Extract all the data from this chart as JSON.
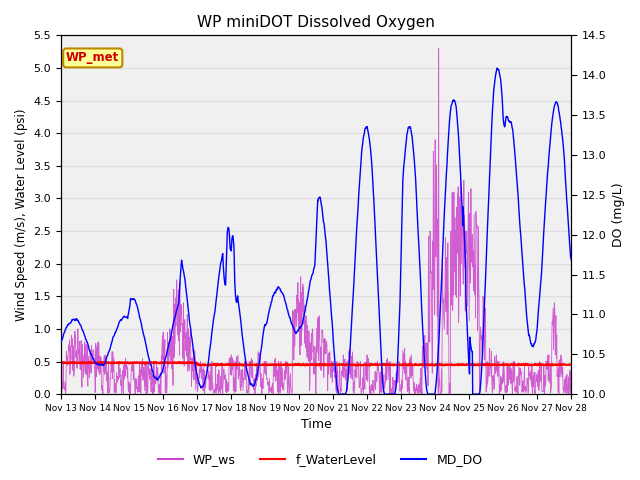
{
  "title": "WP miniDOT Dissolved Oxygen",
  "xlabel": "Time",
  "ylabel_left": "Wind Speed (m/s), Water Level (psi)",
  "ylabel_right": "DO (mg/L)",
  "ylim_left": [
    0.0,
    5.5
  ],
  "ylim_right": [
    10.0,
    14.5
  ],
  "yticks_left": [
    0.0,
    0.5,
    1.0,
    1.5,
    2.0,
    2.5,
    3.0,
    3.5,
    4.0,
    4.5,
    5.0,
    5.5
  ],
  "yticks_right": [
    10.0,
    10.5,
    11.0,
    11.5,
    12.0,
    12.5,
    13.0,
    13.5,
    14.0,
    14.5
  ],
  "date_start": 13,
  "date_end": 28,
  "xtick_labels": [
    "Nov 13",
    "Nov 14",
    "Nov 15",
    "Nov 16",
    "Nov 17",
    "Nov 18",
    "Nov 19",
    "Nov 20",
    "Nov 21",
    "Nov 22",
    "Nov 23",
    "Nov 24",
    "Nov 25",
    "Nov 26",
    "Nov 27",
    "Nov 28"
  ],
  "wp_ws_color": "#CC44CC",
  "f_waterlevel_color": "#FF0000",
  "md_do_color": "#0000FF",
  "legend_labels": [
    "WP_ws",
    "f_WaterLevel",
    "MD_DO"
  ],
  "annotation_text": "WP_met",
  "annotation_color": "#CC0000",
  "annotation_bg": "#FFFF99",
  "annotation_border": "#BB8800",
  "grid_color": "#DDDDDD",
  "plot_bg": "#F0F0F0",
  "band_colors": [
    "#E8E8E8",
    "#F5F5F5"
  ]
}
